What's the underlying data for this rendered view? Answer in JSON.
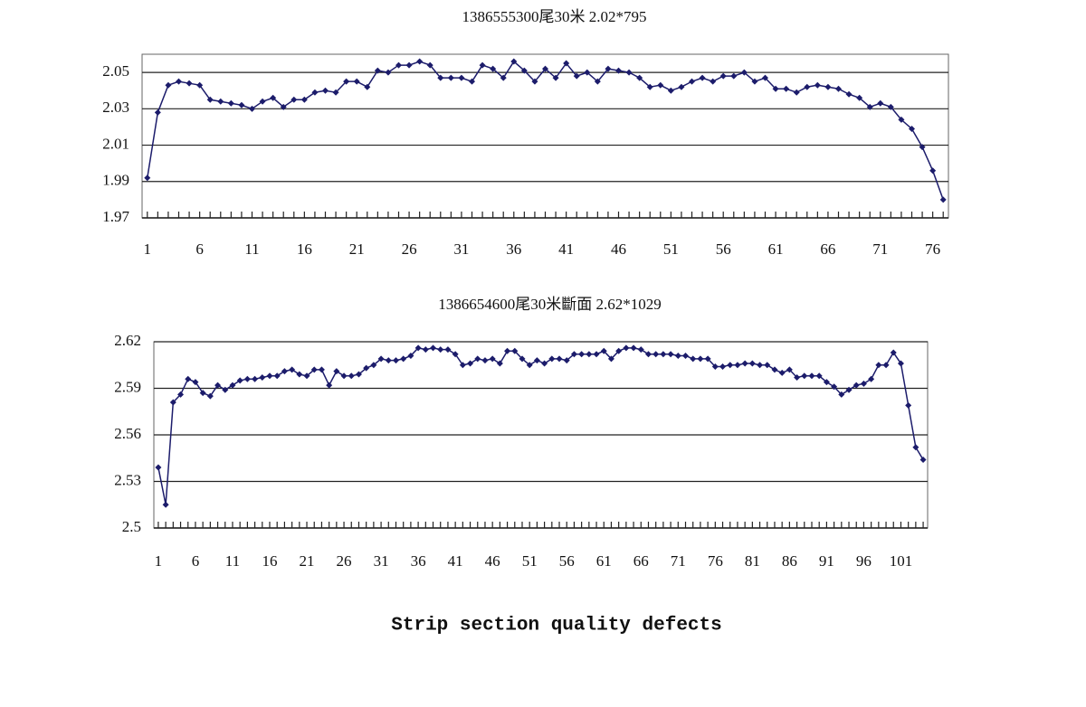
{
  "chart_data": [
    {
      "type": "line",
      "title": "1386555300尾30米 2.02*795",
      "color": "#1c1c6b",
      "grid": true,
      "x": [
        1,
        2,
        3,
        4,
        5,
        6,
        7,
        8,
        9,
        10,
        11,
        12,
        13,
        14,
        15,
        16,
        17,
        18,
        19,
        20,
        21,
        22,
        23,
        24,
        25,
        26,
        27,
        28,
        29,
        30,
        31,
        32,
        33,
        34,
        35,
        36,
        37,
        38,
        39,
        40,
        41,
        42,
        43,
        44,
        45,
        46,
        47,
        48,
        49,
        50,
        51,
        52,
        53,
        54,
        55,
        56,
        57,
        58,
        59,
        60,
        61,
        62,
        63,
        64,
        65,
        66,
        67,
        68,
        69,
        70,
        71,
        72,
        73,
        74,
        75,
        76,
        77
      ],
      "values": [
        1.992,
        2.028,
        2.043,
        2.045,
        2.044,
        2.043,
        2.035,
        2.034,
        2.033,
        2.032,
        2.03,
        2.034,
        2.036,
        2.031,
        2.035,
        2.035,
        2.039,
        2.04,
        2.039,
        2.045,
        2.045,
        2.042,
        2.051,
        2.05,
        2.054,
        2.054,
        2.056,
        2.054,
        2.047,
        2.047,
        2.047,
        2.045,
        2.054,
        2.052,
        2.047,
        2.056,
        2.051,
        2.045,
        2.052,
        2.047,
        2.055,
        2.048,
        2.05,
        2.045,
        2.052,
        2.051,
        2.05,
        2.047,
        2.042,
        2.043,
        2.04,
        2.042,
        2.045,
        2.047,
        2.045,
        2.048,
        2.048,
        2.05,
        2.045,
        2.047,
        2.041,
        2.041,
        2.039,
        2.042,
        2.043,
        2.042,
        2.041,
        2.038,
        2.036,
        2.031,
        2.033,
        2.031,
        2.024,
        2.019,
        2.009,
        1.996,
        1.98
      ],
      "xlim": [
        0.5,
        77.5
      ],
      "xticks": [
        1,
        6,
        11,
        16,
        21,
        26,
        31,
        36,
        41,
        46,
        51,
        56,
        61,
        66,
        71,
        76
      ],
      "ylim": [
        1.97,
        2.06
      ],
      "yticks": [
        1.97,
        1.99,
        2.01,
        2.03,
        2.05
      ]
    },
    {
      "type": "line",
      "title": "1386654600尾30米斷面 2.62*1029",
      "color": "#1c1c6b",
      "grid": true,
      "x": [
        1,
        2,
        3,
        4,
        5,
        6,
        7,
        8,
        9,
        10,
        11,
        12,
        13,
        14,
        15,
        16,
        17,
        18,
        19,
        20,
        21,
        22,
        23,
        24,
        25,
        26,
        27,
        28,
        29,
        30,
        31,
        32,
        33,
        34,
        35,
        36,
        37,
        38,
        39,
        40,
        41,
        42,
        43,
        44,
        45,
        46,
        47,
        48,
        49,
        50,
        51,
        52,
        53,
        54,
        55,
        56,
        57,
        58,
        59,
        60,
        61,
        62,
        63,
        64,
        65,
        66,
        67,
        68,
        69,
        70,
        71,
        72,
        73,
        74,
        75,
        76,
        77,
        78,
        79,
        80,
        81,
        82,
        83,
        84,
        85,
        86,
        87,
        88,
        89,
        90,
        91,
        92,
        93,
        94,
        95,
        96,
        97,
        98,
        99,
        100,
        101,
        102,
        103,
        104
      ],
      "values": [
        2.539,
        2.515,
        2.581,
        2.586,
        2.596,
        2.594,
        2.587,
        2.585,
        2.592,
        2.589,
        2.592,
        2.595,
        2.596,
        2.596,
        2.597,
        2.598,
        2.598,
        2.601,
        2.602,
        2.599,
        2.598,
        2.602,
        2.602,
        2.592,
        2.601,
        2.598,
        2.598,
        2.599,
        2.603,
        2.605,
        2.609,
        2.608,
        2.608,
        2.609,
        2.611,
        2.616,
        2.615,
        2.616,
        2.615,
        2.615,
        2.612,
        2.605,
        2.606,
        2.609,
        2.608,
        2.609,
        2.606,
        2.614,
        2.614,
        2.609,
        2.605,
        2.608,
        2.606,
        2.609,
        2.609,
        2.608,
        2.612,
        2.612,
        2.612,
        2.612,
        2.614,
        2.609,
        2.614,
        2.616,
        2.616,
        2.615,
        2.612,
        2.612,
        2.612,
        2.612,
        2.611,
        2.611,
        2.609,
        2.609,
        2.609,
        2.604,
        2.604,
        2.605,
        2.605,
        2.606,
        2.606,
        2.605,
        2.605,
        2.602,
        2.6,
        2.602,
        2.597,
        2.598,
        2.598,
        2.598,
        2.594,
        2.591,
        2.586,
        2.589,
        2.592,
        2.593,
        2.596,
        2.605,
        2.605,
        2.613,
        2.606,
        2.579,
        2.552,
        2.544
      ],
      "xlim": [
        0.4,
        104.6
      ],
      "xticks": [
        1,
        6,
        11,
        16,
        21,
        26,
        31,
        36,
        41,
        46,
        51,
        56,
        61,
        66,
        71,
        76,
        81,
        86,
        91,
        96,
        101
      ],
      "ylim": [
        2.5,
        2.62
      ],
      "yticks": [
        2.5,
        2.53,
        2.56,
        2.59,
        2.62
      ]
    }
  ],
  "caption": "Strip section quality defects"
}
